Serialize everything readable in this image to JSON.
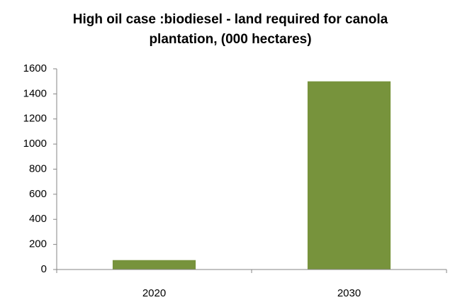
{
  "chart_data": {
    "type": "bar",
    "title": "High oil case :biodiesel - land required for canola plantation, (000 hectares)",
    "categories": [
      "2020",
      "2030"
    ],
    "values": [
      75,
      1500
    ],
    "color": "#77933c",
    "ylim": [
      0,
      1600
    ],
    "yticks": [
      0,
      200,
      400,
      600,
      800,
      1000,
      1200,
      1400,
      1600
    ],
    "grid": false
  }
}
